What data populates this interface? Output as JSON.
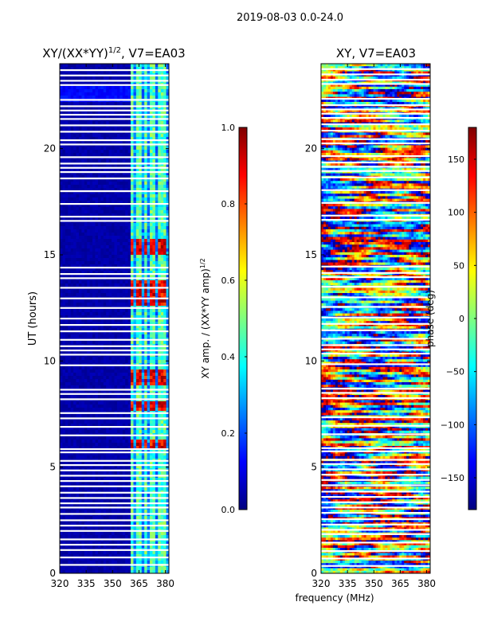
{
  "header": {
    "title": "2019-08-03 0.0-24.0"
  },
  "colors": {
    "jet": [
      "#00007f",
      "#0000ff",
      "#007fff",
      "#00ffff",
      "#7fff7f",
      "#ffff00",
      "#ff7f00",
      "#ff0000",
      "#7f0000"
    ],
    "gap": "#ffffff",
    "frame": "#000000"
  },
  "chart_data": [
    {
      "type": "heatmap",
      "title_main": "XY/(XX*YY)",
      "title_sup": "1/2",
      "title_tail": ", V7=EA03",
      "xlabel": "",
      "ylabel": "UT (hours)",
      "xlim": [
        320,
        382
      ],
      "ylim": [
        0,
        24
      ],
      "xticks": [
        320,
        335,
        350,
        365,
        380
      ],
      "yticks": [
        0,
        5,
        10,
        15,
        20
      ],
      "flagged_band_mhz": [
        320,
        360
      ],
      "bright_channels_mhz": [
        361,
        365,
        369,
        373,
        377,
        380
      ],
      "hot_hours": [
        6.1,
        7.9,
        9.0,
        9.4,
        12.8,
        13.3,
        13.6,
        15.2,
        15.6
      ],
      "gap_hours": [
        0.4,
        0.75,
        1.1,
        1.35,
        1.6,
        2.0,
        2.25,
        2.5,
        2.8,
        3.1,
        3.3,
        3.55,
        3.8,
        4.1,
        4.35,
        4.6,
        4.85,
        5.1,
        5.3,
        5.7,
        5.85,
        6.5,
        6.9,
        7.3,
        7.55,
        8.2,
        8.45,
        8.65,
        9.8,
        10.3,
        10.5,
        10.7,
        11.0,
        11.4,
        11.7,
        12.0,
        12.5,
        12.95,
        13.45,
        13.9,
        14.1,
        14.4,
        16.6,
        16.8,
        17.4,
        18.0,
        18.6,
        18.9,
        19.1,
        19.3,
        19.6,
        20.2,
        20.4,
        20.8,
        21.1,
        21.4,
        21.6,
        21.8,
        22.0,
        22.3,
        23.0,
        23.2,
        23.45,
        23.7
      ],
      "colorbar": {
        "label_main": "XY amp. / (XX*YY amp)",
        "label_sup": "1/2",
        "range": [
          0.0,
          1.0
        ],
        "ticks": [
          "0.0",
          "0.2",
          "0.4",
          "0.6",
          "0.8",
          "1.0"
        ]
      }
    },
    {
      "type": "heatmap",
      "title": "XY, V7=EA03",
      "xlabel": "frequency (MHz)",
      "ylabel": "",
      "xlim": [
        320,
        382
      ],
      "ylim": [
        0,
        24
      ],
      "xticks": [
        320,
        335,
        350,
        365,
        380
      ],
      "yticks": [
        0,
        5,
        10,
        15,
        20
      ],
      "gap_hours": [
        0.35,
        0.7,
        1.05,
        1.45,
        1.85,
        2.05,
        2.3,
        2.55,
        2.85,
        3.1,
        3.35,
        3.6,
        3.85,
        4.15,
        4.4,
        4.65,
        4.9,
        5.15,
        5.35,
        5.75,
        5.9,
        6.55,
        6.95,
        7.35,
        8.25,
        8.5,
        8.7,
        9.85,
        10.35,
        10.55,
        10.75,
        11.05,
        11.45,
        11.75,
        12.05,
        12.55,
        13.0,
        13.5,
        13.95,
        14.15,
        14.45,
        16.65,
        16.85,
        17.45,
        18.05,
        18.65,
        18.95,
        19.15,
        19.35,
        19.65,
        20.25,
        20.45,
        20.85,
        21.15,
        21.45,
        21.65,
        21.85,
        22.05,
        22.35,
        23.05,
        23.25,
        23.5,
        23.75
      ],
      "colorbar": {
        "label": "phase (deg)",
        "range": [
          -180,
          180
        ],
        "ticks": [
          "−150",
          "−100",
          "−50",
          "0",
          "50",
          "100",
          "150"
        ]
      }
    }
  ]
}
